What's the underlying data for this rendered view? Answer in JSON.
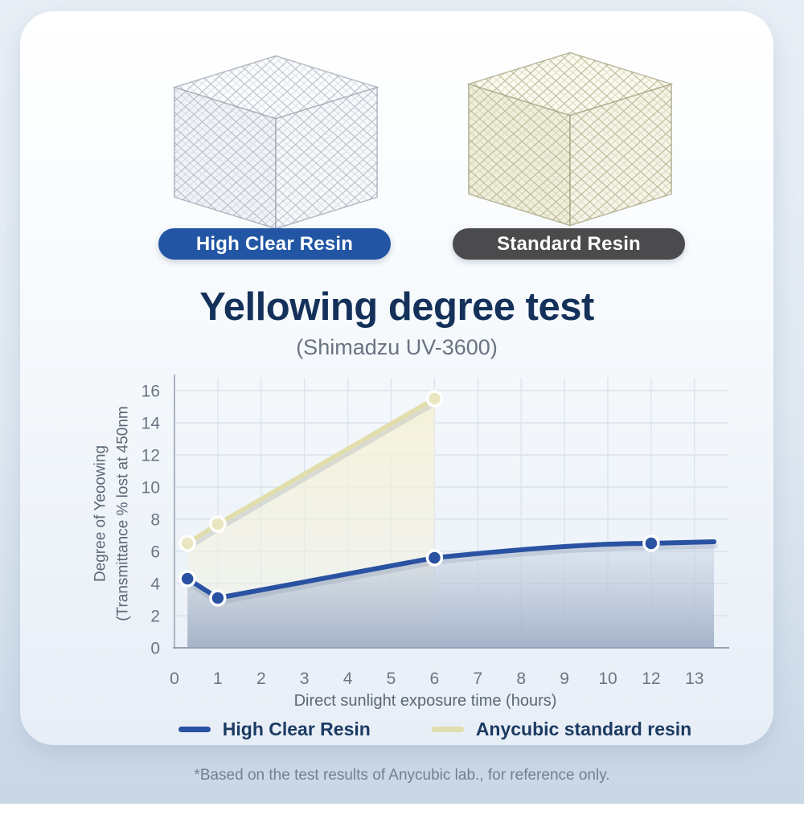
{
  "badges": [
    {
      "label": "High Clear Resin",
      "color": "#2256a5"
    },
    {
      "label": "Standard Resin",
      "color": "#4b4b4d"
    }
  ],
  "cubes": [
    {
      "id": "high-clear",
      "mesh": "#b3b9c3",
      "edge": "#99a1ad",
      "face_top": "#fbfcfe",
      "face_left": "#f0f3f7",
      "face_right": "#f6f8fb"
    },
    {
      "id": "standard",
      "mesh": "#b6b493",
      "edge": "#a09e7c",
      "face_top": "#fbfaee",
      "face_left": "#efeeda",
      "face_right": "#f5f4e6"
    }
  ],
  "title": "Yellowing degree test",
  "subtitle": "(Shimadzu UV-3600)",
  "chart_data": {
    "type": "area",
    "title": "Yellowing degree test",
    "x_categories": [
      "0",
      "1",
      "2",
      "3",
      "4",
      "5",
      "6",
      "7",
      "8",
      "9",
      "10",
      "12",
      "13"
    ],
    "x_axis_note": "category axis, label 11 is skipped",
    "xlabel": "Direct sunlight exposure time (hours)",
    "ylabel_line1": "Degree of Yeoowing",
    "ylabel_line2": "(Transmittance % lost at 450nm",
    "ylim": [
      0,
      16
    ],
    "y_ticks": [
      0,
      2,
      4,
      6,
      8,
      10,
      12,
      14,
      16
    ],
    "grid": true,
    "legend_position": "bottom",
    "series": [
      {
        "name": "Anycubic standard resin",
        "line_color": "#e2deab",
        "marker_color": "#eae6bf",
        "fill_top": "rgba(245,242,216,0.96)",
        "fill_bottom": "rgba(242,241,226,0.30)",
        "points": [
          {
            "x": 0.3,
            "y": 6.5
          },
          {
            "x": 1,
            "y": 7.7
          },
          {
            "x": 6,
            "y": 15.5
          }
        ]
      },
      {
        "name": "High Clear Resin",
        "line_color": "#2a52a2",
        "marker_color": "#2a52a2",
        "fill_top": "rgba(196,208,224,0.40)",
        "fill_bottom": "rgba(152,167,193,0.85)",
        "points": [
          {
            "x": 0.3,
            "y": 4.3
          },
          {
            "x": 1,
            "y": 3.1
          },
          {
            "x": 6,
            "y": 5.6
          },
          {
            "x": 12,
            "y": 6.5
          }
        ],
        "trail_point": {
          "x": 13.45,
          "y": 6.6
        }
      }
    ],
    "legend": [
      {
        "label": "High Clear Resin",
        "color": "#2a52a2"
      },
      {
        "label": "Anycubic standard resin",
        "color": "#e0ddae"
      }
    ]
  },
  "footnote": "*Based on the test results of Anycubic lab., for reference only."
}
